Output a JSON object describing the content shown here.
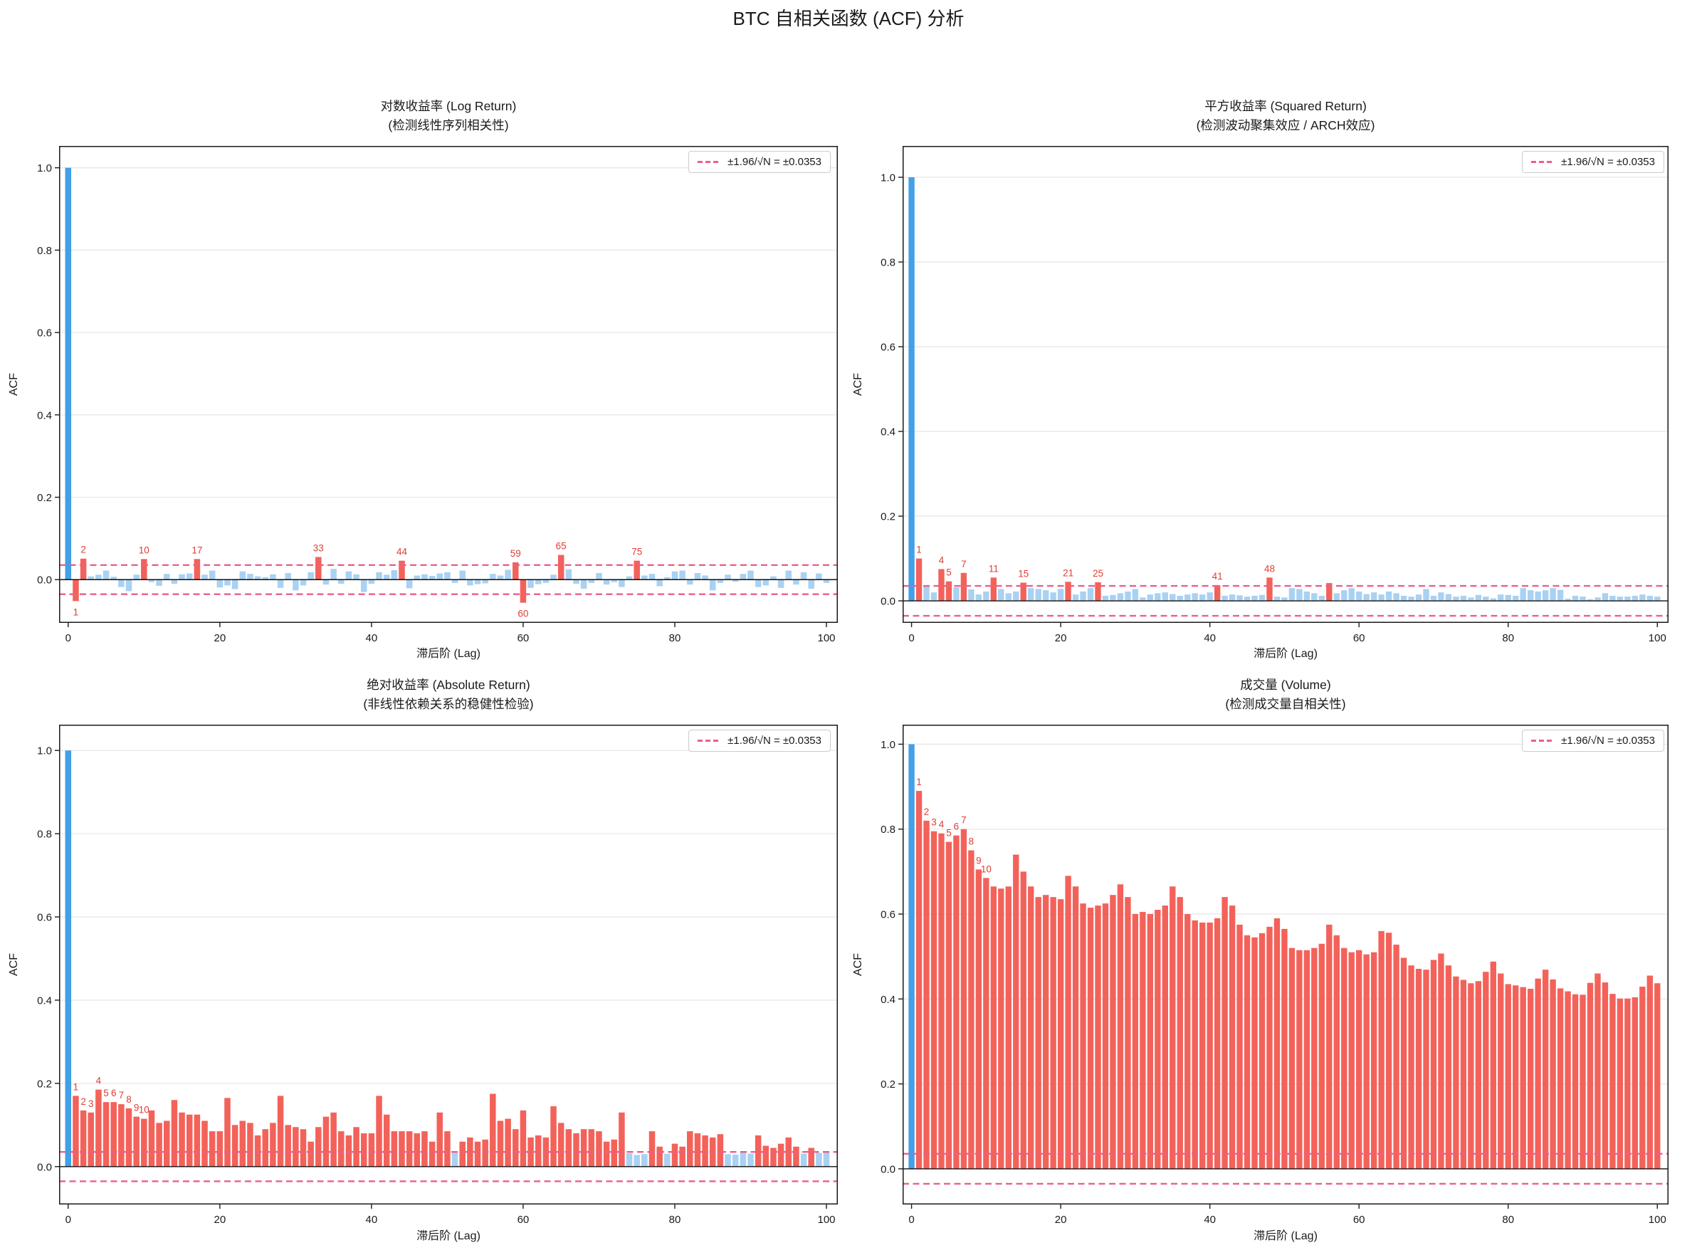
{
  "title": "BTC 自相关函数 (ACF) 分析",
  "colors": {
    "lag0_bar": "#41a0e8",
    "insignificant_bar": "#a9d1f2",
    "significant_bar": "#f3625a",
    "confidence_line": "#ec5f8a",
    "grid": "#e8e8e8",
    "zero_line": "#111111",
    "spine": "#1a1a1a",
    "tick_text": "#1a1a1a",
    "label_text": "#e03e35"
  },
  "axis": {
    "xlabel": "滞后阶 (Lag)",
    "ylabel": "ACF",
    "xticks": [
      0,
      20,
      40,
      60,
      80,
      100
    ],
    "yticks": [
      0.0,
      0.2,
      0.4,
      0.6,
      0.8,
      1.0
    ]
  },
  "chart_data": [
    {
      "type": "bar",
      "title": "对数收益率 (Log Return)",
      "subtitle": "(检测线性序列相关性)",
      "xlabel": "滞后阶 (Lag)",
      "ylabel": "ACF",
      "legend": "±1.96/√N = ±0.0353",
      "threshold": 0.0353,
      "xlim": [
        -1.2,
        101.5
      ],
      "ylim": [
        -0.105,
        1.053
      ],
      "labeled_lags": [
        1,
        2,
        10,
        17,
        33,
        44,
        59,
        60,
        65,
        75
      ],
      "significant_lags": [
        1,
        2,
        10,
        17,
        33,
        44,
        59,
        60,
        65,
        75
      ],
      "values": [
        1.0,
        -0.052,
        0.051,
        0.008,
        0.012,
        0.022,
        0.007,
        -0.018,
        -0.028,
        0.012,
        0.05,
        -0.006,
        -0.015,
        0.014,
        -0.01,
        0.013,
        0.015,
        0.05,
        0.012,
        0.022,
        -0.019,
        -0.014,
        -0.023,
        0.02,
        0.014,
        0.008,
        0.006,
        0.013,
        -0.02,
        0.016,
        -0.026,
        -0.014,
        0.018,
        0.055,
        -0.012,
        0.026,
        -0.01,
        0.02,
        0.013,
        -0.03,
        -0.01,
        0.018,
        0.012,
        0.023,
        0.046,
        -0.021,
        0.01,
        0.013,
        0.009,
        0.015,
        0.018,
        -0.008,
        0.022,
        -0.014,
        -0.011,
        -0.009,
        0.014,
        0.01,
        0.024,
        0.042,
        -0.056,
        -0.02,
        -0.011,
        -0.008,
        0.012,
        0.06,
        0.025,
        -0.01,
        -0.022,
        -0.008,
        0.016,
        -0.012,
        -0.006,
        -0.018,
        0.008,
        0.046,
        0.01,
        0.014,
        -0.016,
        0.006,
        0.02,
        0.022,
        -0.012,
        0.016,
        0.01,
        -0.026,
        -0.008,
        0.012,
        -0.005,
        0.014,
        0.022,
        -0.018,
        -0.014,
        0.008,
        -0.02,
        0.022,
        -0.012,
        0.018,
        -0.022,
        0.015,
        -0.008
      ]
    },
    {
      "type": "bar",
      "title": "平方收益率 (Squared Return)",
      "subtitle": "(检测波动聚集效应 / ARCH效应)",
      "xlabel": "滞后阶 (Lag)",
      "ylabel": "ACF",
      "legend": "±1.96/√N = ±0.0353",
      "threshold": 0.0353,
      "xlim": [
        -1.2,
        101.5
      ],
      "ylim": [
        -0.052,
        1.074
      ],
      "labeled_lags": [
        1,
        4,
        5,
        7,
        11,
        15,
        21,
        25,
        41,
        48
      ],
      "significant_lags": [
        1,
        4,
        5,
        7,
        11,
        15,
        21,
        25,
        41,
        48,
        56
      ],
      "values": [
        1.0,
        0.1,
        0.034,
        0.02,
        0.075,
        0.046,
        0.032,
        0.066,
        0.027,
        0.015,
        0.022,
        0.055,
        0.028,
        0.018,
        0.022,
        0.043,
        0.03,
        0.028,
        0.025,
        0.02,
        0.028,
        0.045,
        0.015,
        0.022,
        0.03,
        0.044,
        0.012,
        0.014,
        0.018,
        0.022,
        0.028,
        0.008,
        0.015,
        0.018,
        0.02,
        0.016,
        0.012,
        0.015,
        0.018,
        0.015,
        0.02,
        0.037,
        0.012,
        0.015,
        0.013,
        0.01,
        0.012,
        0.014,
        0.055,
        0.01,
        0.008,
        0.03,
        0.028,
        0.022,
        0.018,
        0.012,
        0.042,
        0.018,
        0.025,
        0.03,
        0.022,
        0.016,
        0.02,
        0.015,
        0.022,
        0.018,
        0.012,
        0.01,
        0.015,
        0.028,
        0.012,
        0.02,
        0.016,
        0.01,
        0.012,
        0.008,
        0.014,
        0.01,
        0.006,
        0.015,
        0.014,
        0.012,
        0.03,
        0.025,
        0.022,
        0.025,
        0.03,
        0.026,
        0.005,
        0.012,
        0.01,
        0.004,
        0.008,
        0.018,
        0.012,
        0.01,
        0.01,
        0.012,
        0.015,
        0.012,
        0.01
      ]
    },
    {
      "type": "bar",
      "title": "绝对收益率 (Absolute Return)",
      "subtitle": "(非线性依赖关系的稳健性检验)",
      "xlabel": "滞后阶 (Lag)",
      "ylabel": "ACF",
      "legend": "±1.96/√N = ±0.0353",
      "threshold": 0.0353,
      "xlim": [
        -1.2,
        101.5
      ],
      "ylim": [
        -0.091,
        1.062
      ],
      "labeled_lags": [
        1,
        2,
        3,
        4,
        5,
        6,
        7,
        8,
        9,
        10
      ],
      "significant_lags_note": "all lags 1-100 except 51, 74, 75, 76, 79, 87, 88, 89, 90, 97, 99, 100",
      "values": [
        1.0,
        0.17,
        0.135,
        0.13,
        0.185,
        0.155,
        0.155,
        0.15,
        0.14,
        0.12,
        0.115,
        0.135,
        0.105,
        0.11,
        0.16,
        0.13,
        0.125,
        0.125,
        0.11,
        0.085,
        0.085,
        0.165,
        0.1,
        0.11,
        0.105,
        0.075,
        0.09,
        0.105,
        0.17,
        0.1,
        0.095,
        0.09,
        0.06,
        0.095,
        0.12,
        0.13,
        0.085,
        0.075,
        0.095,
        0.08,
        0.08,
        0.17,
        0.125,
        0.085,
        0.085,
        0.085,
        0.08,
        0.085,
        0.06,
        0.13,
        0.085,
        0.033,
        0.06,
        0.07,
        0.06,
        0.065,
        0.175,
        0.11,
        0.115,
        0.09,
        0.135,
        0.07,
        0.075,
        0.07,
        0.145,
        0.105,
        0.09,
        0.08,
        0.09,
        0.09,
        0.085,
        0.06,
        0.065,
        0.13,
        0.032,
        0.028,
        0.03,
        0.085,
        0.048,
        0.031,
        0.055,
        0.048,
        0.085,
        0.08,
        0.075,
        0.07,
        0.078,
        0.03,
        0.029,
        0.035,
        0.031,
        0.075,
        0.05,
        0.045,
        0.055,
        0.07,
        0.048,
        0.031,
        0.045,
        0.033,
        0.034
      ]
    },
    {
      "type": "bar",
      "title": "成交量 (Volume)",
      "subtitle": "(检测成交量自相关性)",
      "xlabel": "滞后阶 (Lag)",
      "ylabel": "ACF",
      "legend": "±1.96/√N = ±0.0353",
      "threshold": 0.0353,
      "xlim": [
        -1.2,
        101.5
      ],
      "ylim": [
        -0.084,
        1.046
      ],
      "labeled_lags": [
        1,
        2,
        3,
        4,
        5,
        6,
        7,
        8,
        9,
        10
      ],
      "significant_lags_note": "all lags 1-100 significant",
      "values": [
        1.0,
        0.89,
        0.82,
        0.795,
        0.79,
        0.77,
        0.785,
        0.8,
        0.75,
        0.705,
        0.685,
        0.665,
        0.66,
        0.665,
        0.74,
        0.7,
        0.665,
        0.64,
        0.645,
        0.64,
        0.635,
        0.69,
        0.665,
        0.625,
        0.615,
        0.62,
        0.625,
        0.645,
        0.67,
        0.64,
        0.6,
        0.605,
        0.6,
        0.61,
        0.62,
        0.665,
        0.64,
        0.6,
        0.585,
        0.58,
        0.58,
        0.59,
        0.64,
        0.62,
        0.575,
        0.55,
        0.545,
        0.555,
        0.57,
        0.59,
        0.565,
        0.52,
        0.515,
        0.515,
        0.52,
        0.53,
        0.575,
        0.55,
        0.52,
        0.51,
        0.515,
        0.505,
        0.51,
        0.56,
        0.556,
        0.528,
        0.497,
        0.479,
        0.471,
        0.469,
        0.492,
        0.507,
        0.479,
        0.453,
        0.445,
        0.437,
        0.442,
        0.464,
        0.488,
        0.46,
        0.435,
        0.432,
        0.428,
        0.424,
        0.448,
        0.469,
        0.446,
        0.425,
        0.418,
        0.411,
        0.41,
        0.438,
        0.46,
        0.439,
        0.412,
        0.401,
        0.401,
        0.404,
        0.429,
        0.455,
        0.437
      ]
    }
  ]
}
